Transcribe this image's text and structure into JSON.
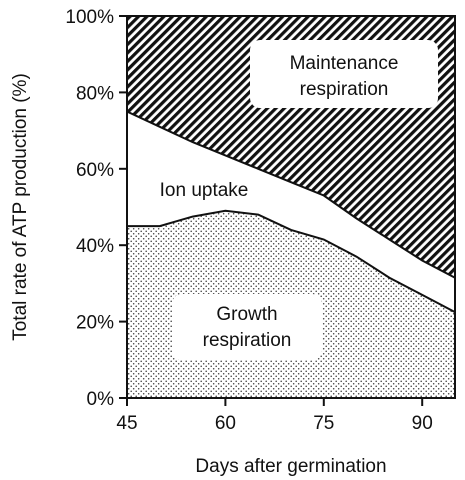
{
  "chart_data": {
    "type": "area",
    "xlabel": "Days after germination",
    "ylabel": "Total rate of ATP production (%)",
    "xlim": [
      45,
      95
    ],
    "ylim": [
      0,
      100
    ],
    "x_ticks": [
      45,
      60,
      75,
      90
    ],
    "x_tick_labels": [
      "45",
      "60",
      "75",
      "90"
    ],
    "y_ticks": [
      0,
      20,
      40,
      60,
      80,
      100
    ],
    "y_tick_labels": [
      "0%",
      "20%",
      "40%",
      "60%",
      "80%",
      "100%"
    ],
    "grid": false,
    "legend": "none",
    "series": [
      {
        "name": "Growth respiration",
        "label_lines": [
          "Growth",
          "respiration"
        ],
        "pattern": "dots",
        "boundary_upper": {
          "x": [
            45,
            50,
            55,
            60,
            65,
            70,
            75,
            80,
            85,
            90,
            95
          ],
          "y": [
            45,
            45,
            47.5,
            49,
            48,
            44,
            41.5,
            37,
            31.5,
            27,
            22.5
          ]
        }
      },
      {
        "name": "Ion uptake",
        "label_lines": [
          "Ion uptake"
        ],
        "pattern": "none",
        "boundary_upper": {
          "x": [
            45,
            50,
            55,
            60,
            65,
            70,
            75,
            80,
            85,
            90,
            95
          ],
          "y": [
            75,
            71,
            67,
            63.5,
            60,
            56.5,
            53,
            47,
            41.5,
            36,
            31.5
          ]
        }
      },
      {
        "name": "Maintenance respiration",
        "label_lines": [
          "Maintenance",
          "respiration"
        ],
        "pattern": "diagonal-hatch",
        "boundary_upper": {
          "x": [
            45,
            95
          ],
          "y": [
            100,
            100
          ]
        }
      }
    ],
    "colors": {
      "ink": "#111111",
      "background": "#ffffff",
      "hatch_background": "#6f6f6f",
      "dot": "#4a4a4a"
    }
  }
}
